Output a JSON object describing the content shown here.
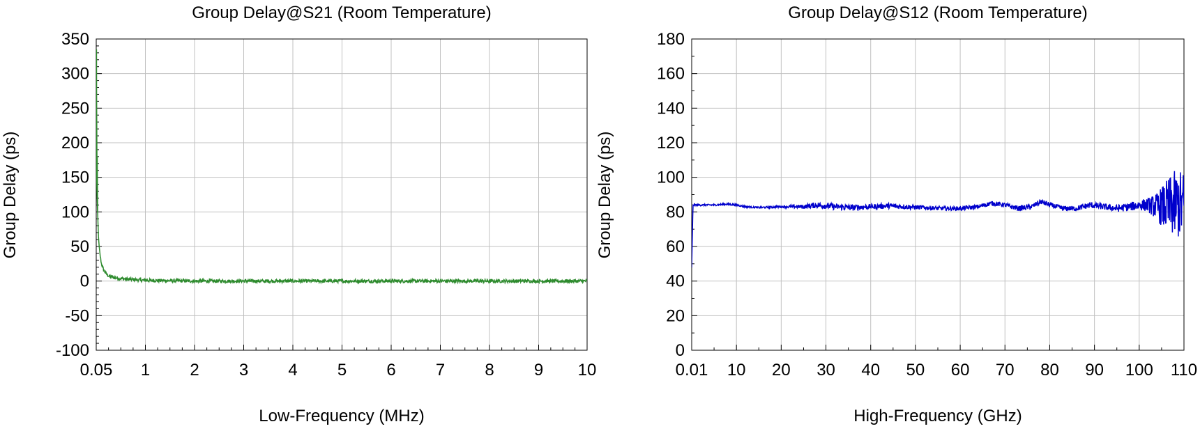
{
  "chart_data": [
    {
      "type": "line",
      "title": "Group Delay@S21 (Room Temperature)",
      "xlabel": "Low-Frequency (MHz)",
      "ylabel": "Group Delay (ps)",
      "xlim": [
        0.05,
        10
      ],
      "ylim": [
        -100,
        350
      ],
      "x_ticks": [
        "0.05",
        "1",
        "2",
        "3",
        "4",
        "5",
        "6",
        "7",
        "8",
        "9",
        "10"
      ],
      "x_tick_values": [
        0.05,
        1,
        2,
        3,
        4,
        5,
        6,
        7,
        8,
        9,
        10
      ],
      "y_ticks": [
        "-100",
        "-50",
        "0",
        "50",
        "100",
        "150",
        "200",
        "250",
        "300",
        "350"
      ],
      "y_tick_values": [
        -100,
        -50,
        0,
        50,
        100,
        150,
        200,
        250,
        300,
        350
      ],
      "grid": true,
      "series": [
        {
          "color": "#2e8b2e",
          "x": [
            0.05,
            0.055,
            0.06,
            0.065,
            0.07,
            0.075,
            0.08,
            0.09,
            0.1,
            0.12,
            0.15,
            0.2,
            0.25,
            0.3,
            0.4,
            0.5,
            0.6,
            0.8,
            1.0,
            1.5,
            2,
            3,
            4,
            5,
            6,
            7,
            8,
            9,
            10
          ],
          "y": [
            170,
            335,
            200,
            165,
            180,
            100,
            95,
            70,
            55,
            40,
            25,
            15,
            10,
            7,
            5,
            4,
            3,
            2,
            1,
            0.5,
            0,
            0,
            0,
            0,
            0,
            0,
            0,
            0,
            0
          ],
          "noise": 2.5
        }
      ]
    },
    {
      "type": "line",
      "title": "Group Delay@S12 (Room Temperature)",
      "xlabel": "High-Frequency (GHz)",
      "ylabel": "Group Delay (ps)",
      "xlim": [
        0.01,
        110
      ],
      "ylim": [
        0,
        180
      ],
      "x_ticks": [
        "0.01",
        "10",
        "20",
        "30",
        "40",
        "50",
        "60",
        "70",
        "80",
        "90",
        "100",
        "110"
      ],
      "x_tick_values": [
        0.01,
        10,
        20,
        30,
        40,
        50,
        60,
        70,
        80,
        90,
        100,
        110
      ],
      "y_ticks": [
        "0",
        "20",
        "40",
        "60",
        "80",
        "100",
        "120",
        "140",
        "160",
        "180"
      ],
      "y_tick_values": [
        0,
        20,
        40,
        60,
        80,
        100,
        120,
        140,
        160,
        180
      ],
      "grid": true,
      "series": [
        {
          "color": "#0000cc",
          "x": [
            0.01,
            0.3,
            2,
            5,
            8,
            10,
            12,
            15,
            20,
            25,
            28,
            32,
            36,
            40,
            44,
            48,
            52,
            56,
            60,
            64,
            67,
            70,
            73,
            76,
            78,
            80,
            83,
            86,
            89,
            92,
            95,
            98,
            100,
            102,
            104,
            106,
            108,
            110
          ],
          "y": [
            48,
            84,
            84,
            84,
            84.5,
            84,
            83,
            82.5,
            83,
            83,
            84,
            83,
            82.5,
            83,
            83.5,
            83,
            82.5,
            82,
            82,
            83,
            85,
            84,
            82,
            83,
            86,
            84,
            82,
            82,
            84,
            83,
            82,
            83,
            84,
            84,
            83,
            83,
            84,
            84
          ],
          "noise": [
            0.4,
            0.4,
            0.5,
            0.5,
            0.5,
            0.5,
            0.5,
            0.5,
            0.6,
            1.2,
            1.8,
            1.8,
            1.8,
            1.5,
            1.5,
            1.5,
            1.2,
            1.2,
            1.2,
            1.3,
            1.3,
            1.3,
            1.5,
            1.5,
            1.5,
            1.5,
            1.5,
            1.5,
            1.8,
            1.8,
            2.0,
            2.5,
            3.0,
            4.0,
            8.0,
            15.0,
            20.0,
            20.0
          ]
        }
      ]
    }
  ]
}
